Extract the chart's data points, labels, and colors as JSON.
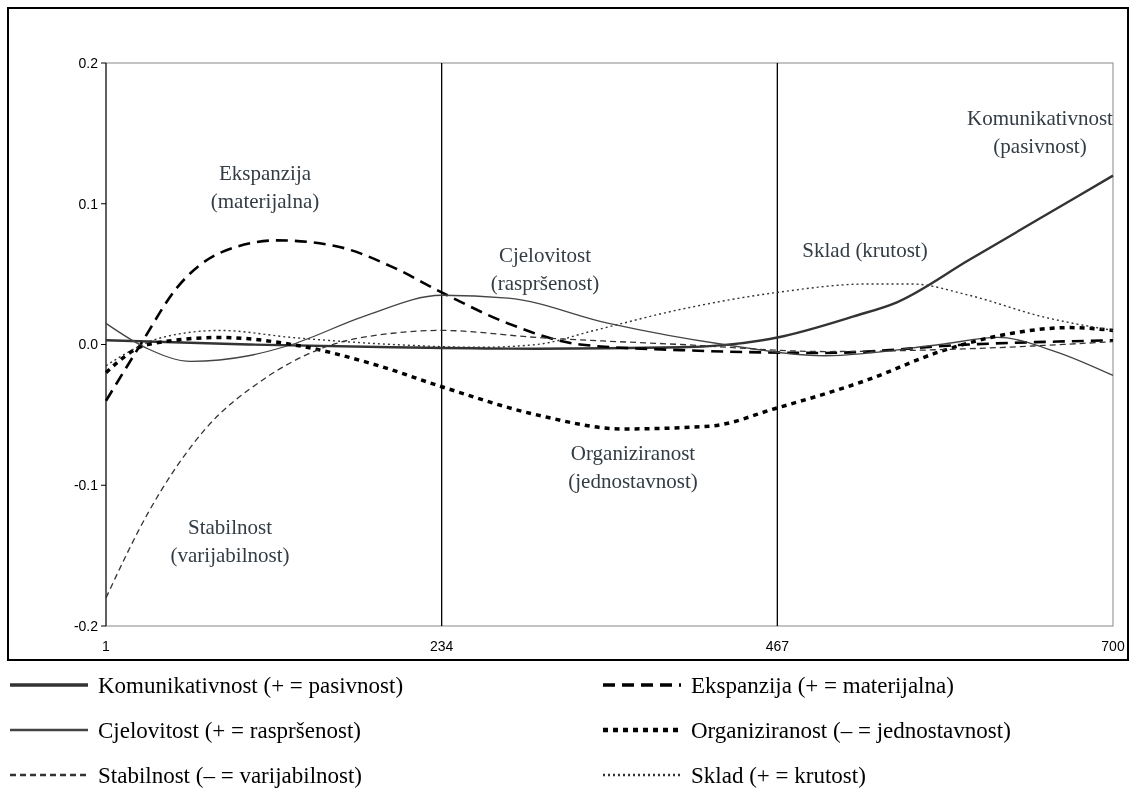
{
  "chart_data": {
    "type": "line",
    "xlim": [
      1,
      700
    ],
    "xticks": [
      1,
      234,
      467,
      700
    ],
    "ylim": [
      -0.2,
      0.2
    ],
    "yticks": [
      -0.2,
      -0.1,
      {
        "value": 0,
        "label": "0.0"
      },
      0.1,
      0.2
    ],
    "grid": false,
    "legend": "bottom",
    "ref_lines": [
      {
        "axis": "x",
        "value": 234,
        "label": null,
        "color": "#000000"
      },
      {
        "axis": "x",
        "value": 467,
        "label": null,
        "color": "#000000"
      }
    ],
    "annotations": [
      "Ekspanzija\n(materijalna)",
      "Cjelovitost\n(raspršenost)",
      "Stabilnost\n(varijabilnost)",
      "Organiziranost\n(jednostavnost)",
      "Sklad (krutost)",
      "Komunikativnost\n(pasivnost)"
    ],
    "series": [
      {
        "name": "Komunikativnost (+ = pasivnost)",
        "color": "#333333",
        "line_style": "solid",
        "x": [
          1,
          100,
          200,
          300,
          400,
          467,
          520,
          550,
          600,
          650,
          700
        ],
        "values": [
          0.003,
          0.0,
          -0.002,
          -0.003,
          -0.002,
          0.005,
          0.02,
          0.03,
          0.06,
          0.09,
          0.12
        ]
      },
      {
        "name": "Ekspanzija (+ = materijalna)",
        "color": "#000000",
        "line_style": "dashed",
        "x": [
          1,
          25,
          50,
          80,
          120,
          160,
          200,
          234,
          280,
          330,
          400,
          500,
          600,
          700
        ],
        "values": [
          -0.04,
          0.0,
          0.04,
          0.065,
          0.074,
          0.07,
          0.055,
          0.037,
          0.015,
          0.0,
          -0.004,
          -0.006,
          0.0,
          0.003
        ]
      },
      {
        "name": "Cjelovitost (+ = raspršenost)",
        "color": "#444444",
        "line_style": "solid",
        "x": [
          1,
          30,
          60,
          100,
          130,
          180,
          234,
          280,
          350,
          430,
          500,
          580,
          620,
          660,
          700
        ],
        "values": [
          0.015,
          -0.003,
          -0.012,
          -0.008,
          0.0,
          0.02,
          0.035,
          0.033,
          0.015,
          0.0,
          -0.008,
          0.0,
          0.005,
          -0.005,
          -0.022
        ]
      },
      {
        "name": "Organiziranost (– = jednostavnost)",
        "color": "#000000",
        "line_style": "dotted",
        "x": [
          1,
          30,
          80,
          130,
          190,
          234,
          300,
          360,
          420,
          467,
          530,
          580,
          630,
          670,
          700
        ],
        "values": [
          -0.02,
          0.0,
          0.005,
          0.0,
          -0.015,
          -0.03,
          -0.05,
          -0.06,
          -0.058,
          -0.045,
          -0.025,
          -0.005,
          0.008,
          0.012,
          0.01
        ]
      },
      {
        "name": "Stabilnost (– = varijabilnost)",
        "color": "#333333",
        "line_style": "dashed",
        "x": [
          1,
          30,
          70,
          110,
          150,
          200,
          234,
          300,
          400,
          500,
          600,
          700
        ],
        "values": [
          -0.18,
          -0.12,
          -0.06,
          -0.025,
          -0.003,
          0.008,
          0.01,
          0.005,
          0.0,
          -0.005,
          -0.003,
          0.002
        ]
      },
      {
        "name": "Sklad (+ = krutost)",
        "color": "#333333",
        "line_style": "dotted",
        "x": [
          1,
          40,
          80,
          130,
          200,
          260,
          300,
          340,
          400,
          467,
          530,
          560,
          600,
          650,
          700
        ],
        "values": [
          -0.015,
          0.005,
          0.01,
          0.005,
          0.0,
          -0.002,
          0.0,
          0.01,
          0.025,
          0.037,
          0.043,
          0.043,
          0.035,
          0.02,
          0.01
        ]
      }
    ]
  }
}
